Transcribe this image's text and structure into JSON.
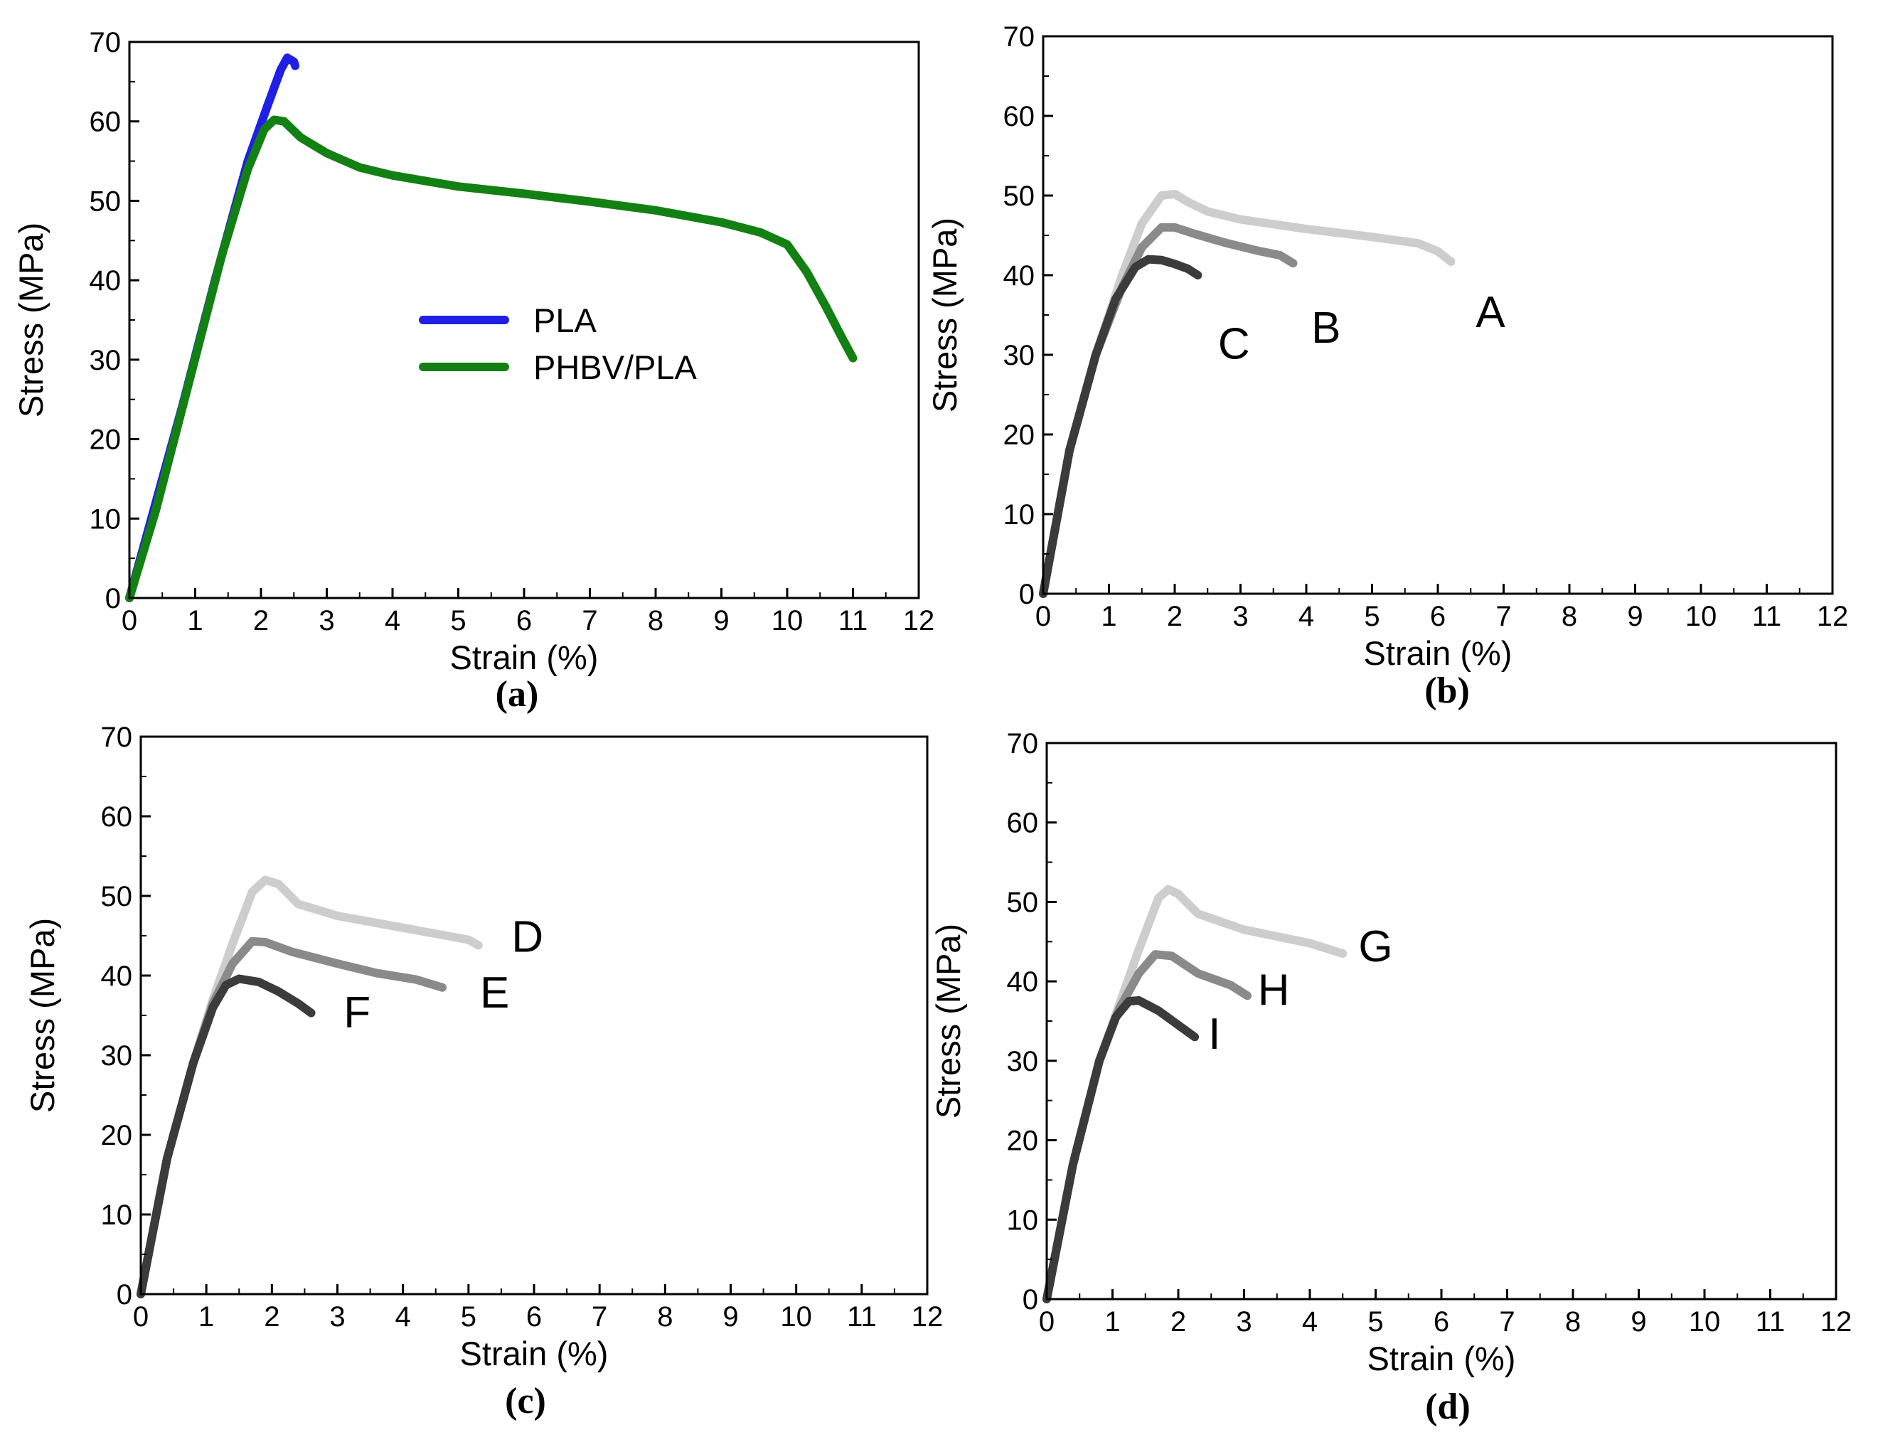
{
  "chart_data": [
    {
      "type": "line",
      "panel": "(a)",
      "xlabel": "Strain (%)",
      "ylabel": "Stress (MPa)",
      "xlim": [
        0,
        12
      ],
      "ylim": [
        0,
        70
      ],
      "xticks": [
        0,
        1,
        2,
        3,
        4,
        5,
        6,
        7,
        8,
        9,
        10,
        11,
        12
      ],
      "yticks": [
        0,
        10,
        20,
        30,
        40,
        50,
        60,
        70
      ],
      "legend_position": "center",
      "series": [
        {
          "name": "PLA",
          "color": "#1f1fe6",
          "points": [
            [
              0,
              0
            ],
            [
              0.3,
              9
            ],
            [
              0.8,
              24
            ],
            [
              1.3,
              40
            ],
            [
              1.8,
              55
            ],
            [
              2.1,
              62
            ],
            [
              2.3,
              66.5
            ],
            [
              2.4,
              68
            ],
            [
              2.5,
              67.5
            ],
            [
              2.52,
              67
            ]
          ]
        },
        {
          "name": "PHBV/PLA",
          "color": "#138013",
          "points": [
            [
              0,
              0
            ],
            [
              0.4,
              11
            ],
            [
              0.9,
              27
            ],
            [
              1.4,
              43
            ],
            [
              1.8,
              54
            ],
            [
              2.05,
              59
            ],
            [
              2.2,
              60.2
            ],
            [
              2.35,
              60
            ],
            [
              2.6,
              58
            ],
            [
              3,
              56
            ],
            [
              3.5,
              54.2
            ],
            [
              4,
              53.2
            ],
            [
              5,
              51.8
            ],
            [
              6,
              50.9
            ],
            [
              7,
              49.9
            ],
            [
              8,
              48.8
            ],
            [
              9,
              47.3
            ],
            [
              9.6,
              46
            ],
            [
              10,
              44.5
            ],
            [
              10.3,
              41
            ],
            [
              10.6,
              36.5
            ],
            [
              10.85,
              32.5
            ],
            [
              11,
              30.2
            ]
          ]
        }
      ]
    },
    {
      "type": "line",
      "panel": "(b)",
      "xlabel": "Strain (%)",
      "ylabel": "Stress (MPa)",
      "xlim": [
        0,
        12
      ],
      "ylim": [
        0,
        70
      ],
      "xticks": [
        0,
        1,
        2,
        3,
        4,
        5,
        6,
        7,
        8,
        9,
        10,
        11,
        12
      ],
      "yticks": [
        0,
        10,
        20,
        30,
        40,
        50,
        60,
        70
      ],
      "series": [
        {
          "name": "A",
          "color": "#cdcdcd",
          "label_at": [
            6.8,
            33.5
          ],
          "points": [
            [
              0,
              0
            ],
            [
              0.4,
              18
            ],
            [
              0.8,
              30
            ],
            [
              1.2,
              40
            ],
            [
              1.5,
              46.5
            ],
            [
              1.8,
              50
            ],
            [
              2,
              50.2
            ],
            [
              2.2,
              49.2
            ],
            [
              2.5,
              48
            ],
            [
              3,
              47
            ],
            [
              4,
              45.8
            ],
            [
              5,
              44.8
            ],
            [
              5.7,
              44
            ],
            [
              6,
              43
            ],
            [
              6.2,
              41.7
            ]
          ]
        },
        {
          "name": "B",
          "color": "#8a8a8a",
          "label_at": [
            4.3,
            31.5
          ],
          "points": [
            [
              0,
              0
            ],
            [
              0.4,
              18
            ],
            [
              0.8,
              30
            ],
            [
              1.2,
              38.5
            ],
            [
              1.5,
              43.5
            ],
            [
              1.8,
              46
            ],
            [
              2,
              46
            ],
            [
              2.3,
              45.2
            ],
            [
              2.8,
              44
            ],
            [
              3.3,
              43
            ],
            [
              3.6,
              42.5
            ],
            [
              3.8,
              41.5
            ]
          ]
        },
        {
          "name": "C",
          "color": "#3b3b3b",
          "label_at": [
            2.9,
            29.5
          ],
          "points": [
            [
              0,
              0
            ],
            [
              0.4,
              18
            ],
            [
              0.8,
              30
            ],
            [
              1.1,
              37
            ],
            [
              1.4,
              41
            ],
            [
              1.6,
              42
            ],
            [
              1.8,
              41.9
            ],
            [
              2,
              41.4
            ],
            [
              2.2,
              40.8
            ],
            [
              2.35,
              40
            ]
          ]
        }
      ]
    },
    {
      "type": "line",
      "panel": "(c)",
      "xlabel": "Strain (%)",
      "ylabel": "Stress (MPa)",
      "xlim": [
        0,
        12
      ],
      "ylim": [
        0,
        70
      ],
      "xticks": [
        0,
        1,
        2,
        3,
        4,
        5,
        6,
        7,
        8,
        9,
        10,
        11,
        12
      ],
      "yticks": [
        0,
        10,
        20,
        30,
        40,
        50,
        60,
        70
      ],
      "series": [
        {
          "name": "D",
          "color": "#cdcdcd",
          "label_at": [
            5.9,
            43
          ],
          "points": [
            [
              0,
              0
            ],
            [
              0.4,
              17
            ],
            [
              0.8,
              29
            ],
            [
              1.1,
              37
            ],
            [
              1.4,
              44
            ],
            [
              1.7,
              50.5
            ],
            [
              1.9,
              52
            ],
            [
              2.1,
              51.5
            ],
            [
              2.4,
              49
            ],
            [
              3,
              47.5
            ],
            [
              4,
              46
            ],
            [
              5,
              44.5
            ],
            [
              5.15,
              43.8
            ]
          ]
        },
        {
          "name": "E",
          "color": "#8a8a8a",
          "label_at": [
            5.4,
            36
          ],
          "points": [
            [
              0,
              0
            ],
            [
              0.4,
              17
            ],
            [
              0.8,
              29
            ],
            [
              1.1,
              36.5
            ],
            [
              1.4,
              41.5
            ],
            [
              1.7,
              44.3
            ],
            [
              1.9,
              44.2
            ],
            [
              2.3,
              43
            ],
            [
              3,
              41.5
            ],
            [
              3.6,
              40.3
            ],
            [
              4.2,
              39.5
            ],
            [
              4.6,
              38.5
            ]
          ]
        },
        {
          "name": "F",
          "color": "#3b3b3b",
          "label_at": [
            3.3,
            33.5
          ],
          "points": [
            [
              0,
              0
            ],
            [
              0.4,
              17
            ],
            [
              0.8,
              29
            ],
            [
              1.1,
              36
            ],
            [
              1.3,
              38.8
            ],
            [
              1.5,
              39.6
            ],
            [
              1.8,
              39.2
            ],
            [
              2.1,
              38
            ],
            [
              2.4,
              36.5
            ],
            [
              2.6,
              35.3
            ]
          ]
        }
      ]
    },
    {
      "type": "line",
      "panel": "(d)",
      "xlabel": "Strain (%)",
      "ylabel": "Stress (MPa)",
      "xlim": [
        0,
        12
      ],
      "ylim": [
        0,
        70
      ],
      "xticks": [
        0,
        1,
        2,
        3,
        4,
        5,
        6,
        7,
        8,
        9,
        10,
        11,
        12
      ],
      "yticks": [
        0,
        10,
        20,
        30,
        40,
        50,
        60,
        70
      ],
      "series": [
        {
          "name": "G",
          "color": "#cdcdcd",
          "label_at": [
            5.0,
            42.5
          ],
          "points": [
            [
              0,
              0
            ],
            [
              0.4,
              17
            ],
            [
              0.8,
              30
            ],
            [
              1.1,
              37
            ],
            [
              1.4,
              44
            ],
            [
              1.7,
              50.5
            ],
            [
              1.85,
              51.6
            ],
            [
              2,
              51
            ],
            [
              2.3,
              48.5
            ],
            [
              3,
              46.5
            ],
            [
              4,
              44.8
            ],
            [
              4.5,
              43.5
            ]
          ]
        },
        {
          "name": "H",
          "color": "#8a8a8a",
          "label_at": [
            3.45,
            37
          ],
          "points": [
            [
              0,
              0
            ],
            [
              0.4,
              17
            ],
            [
              0.8,
              30
            ],
            [
              1.1,
              36.5
            ],
            [
              1.4,
              41
            ],
            [
              1.65,
              43.4
            ],
            [
              1.9,
              43.2
            ],
            [
              2.3,
              41
            ],
            [
              2.8,
              39.5
            ],
            [
              3.05,
              38.2
            ]
          ]
        },
        {
          "name": "I",
          "color": "#3b3b3b",
          "label_at": [
            2.55,
            31.5
          ],
          "points": [
            [
              0,
              0
            ],
            [
              0.4,
              17
            ],
            [
              0.8,
              30
            ],
            [
              1.05,
              35.5
            ],
            [
              1.25,
              37.5
            ],
            [
              1.4,
              37.6
            ],
            [
              1.7,
              36.3
            ],
            [
              2,
              34.5
            ],
            [
              2.25,
              33
            ]
          ]
        }
      ]
    }
  ]
}
